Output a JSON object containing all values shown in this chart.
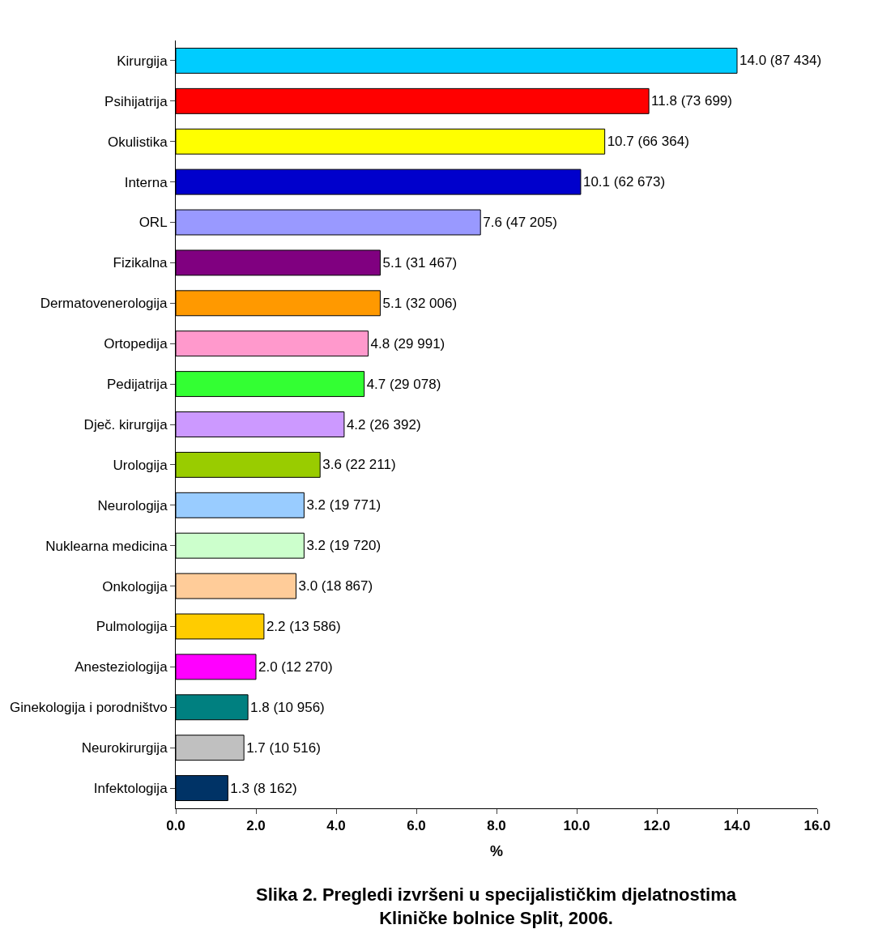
{
  "chart_data": {
    "type": "bar",
    "orientation": "horizontal",
    "title": "Slika 2. Pregledi izvršeni u specijalističkim djelatnostima\nKliničke bolnice Split, 2006.",
    "xlabel": "%",
    "categories": [
      "Kirurgija",
      "Psihijatrija",
      "Okulistika",
      "Interna",
      "ORL",
      "Fizikalna",
      "Dermatovenerologija",
      "Ortopedija",
      "Pedijatrija",
      "Dječ. kirurgija",
      "Urologija",
      "Neurologija",
      "Nuklearna medicina",
      "Onkologija",
      "Pulmologija",
      "Anesteziologija",
      "Ginekologija i porodništvo",
      "Neurokirurgija",
      "Infektologija"
    ],
    "values": [
      14.0,
      11.8,
      10.7,
      10.1,
      7.6,
      5.1,
      5.1,
      4.8,
      4.7,
      4.2,
      3.6,
      3.2,
      3.2,
      3.0,
      2.2,
      2.0,
      1.8,
      1.7,
      1.3
    ],
    "value_labels": [
      "14.0 (87 434)",
      "11.8 (73 699)",
      "10.7 (66 364)",
      "10.1 (62 673)",
      "7.6 (47 205)",
      "5.1 (31 467)",
      "5.1 (32 006)",
      "4.8 (29 991)",
      "4.7 (29 078)",
      "4.2 (26 392)",
      "3.6 (22 211)",
      "3.2 (19 771)",
      "3.2 (19 720)",
      "3.0 (18 867)",
      "2.2 (13 586)",
      "2.0 (12 270)",
      "1.8 (10 956)",
      "1.7 (10 516)",
      "1.3 (8 162)"
    ],
    "colors": [
      "#00ccff",
      "#ff0000",
      "#ffff00",
      "#0000cc",
      "#9999ff",
      "#800080",
      "#ff9900",
      "#ff99cc",
      "#33ff33",
      "#cc99ff",
      "#99cc00",
      "#99ccff",
      "#ccffcc",
      "#ffcc99",
      "#ffcc00",
      "#ff00ff",
      "#008080",
      "#c0c0c0",
      "#003366"
    ],
    "xlim": [
      0,
      16
    ],
    "xticks": [
      {
        "value": 0,
        "label": "0.0"
      },
      {
        "value": 2,
        "label": "2.0"
      },
      {
        "value": 4,
        "label": "4.0"
      },
      {
        "value": 6,
        "label": "6.0"
      },
      {
        "value": 8,
        "label": "8.0"
      },
      {
        "value": 10,
        "label": "10.0"
      },
      {
        "value": 12,
        "label": "12.0"
      },
      {
        "value": 14,
        "label": "14.0"
      },
      {
        "value": 16,
        "label": "16.0"
      }
    ]
  }
}
